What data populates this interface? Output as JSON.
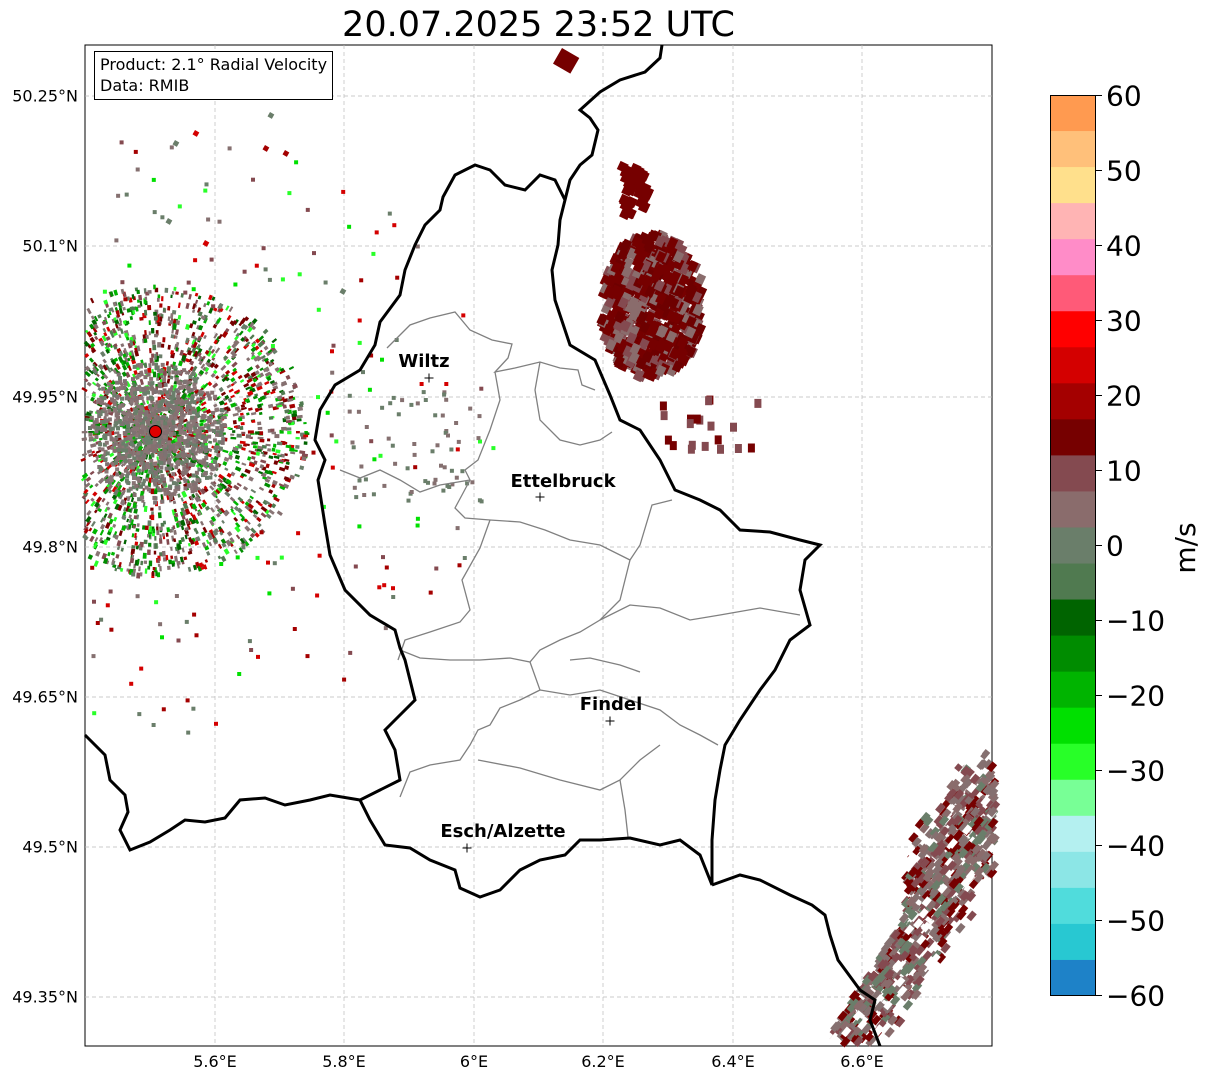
{
  "title": "20.07.2025 23:52 UTC",
  "info": {
    "product": "Product: 2.1° Radial Velocity",
    "data_source": "Data: RMIB"
  },
  "axes": {
    "lat_ticks": [
      "50.25°N",
      "50.1°N",
      "49.95°N",
      "49.8°N",
      "49.65°N",
      "49.5°N",
      "49.35°N"
    ],
    "lon_ticks": [
      "5.6°E",
      "5.8°E",
      "6°E",
      "6.2°E",
      "6.4°E",
      "6.6°E"
    ]
  },
  "cities": [
    {
      "name": "Wiltz",
      "lon": 5.93,
      "lat": 49.966
    },
    {
      "name": "Ettelbruck",
      "lon": 6.1,
      "lat": 49.847
    },
    {
      "name": "Findel",
      "lon": 6.21,
      "lat": 49.627
    },
    {
      "name": "Esch/Alzette",
      "lon": 5.99,
      "lat": 49.499
    }
  ],
  "radar_site": {
    "lon": 5.505,
    "lat": 49.914
  },
  "colorbar": {
    "label": "m/s",
    "min": -60,
    "max": 60,
    "ticks": [
      "60",
      "50",
      "40",
      "30",
      "20",
      "10",
      "0",
      "−10",
      "−20",
      "−30",
      "−40",
      "−50",
      "−60"
    ],
    "colors": [
      "#ff9a50",
      "#ffc07a",
      "#ffe08c",
      "#ffb4b4",
      "#ff8cc8",
      "#ff5a78",
      "#ff0000",
      "#d40000",
      "#a40000",
      "#760000",
      "#844a50",
      "#8a6c6c",
      "#6a7e6a",
      "#507a50",
      "#006400",
      "#008c00",
      "#00b400",
      "#00e000",
      "#28ff28",
      "#78ff96",
      "#b4f0f0",
      "#8ce6e6",
      "#50dcdc",
      "#28c8d2",
      "#1e82c8"
    ]
  },
  "map_extent": {
    "lon_min": 5.4,
    "lon_max": 6.8,
    "lat_min": 49.3,
    "lat_max": 50.3
  }
}
